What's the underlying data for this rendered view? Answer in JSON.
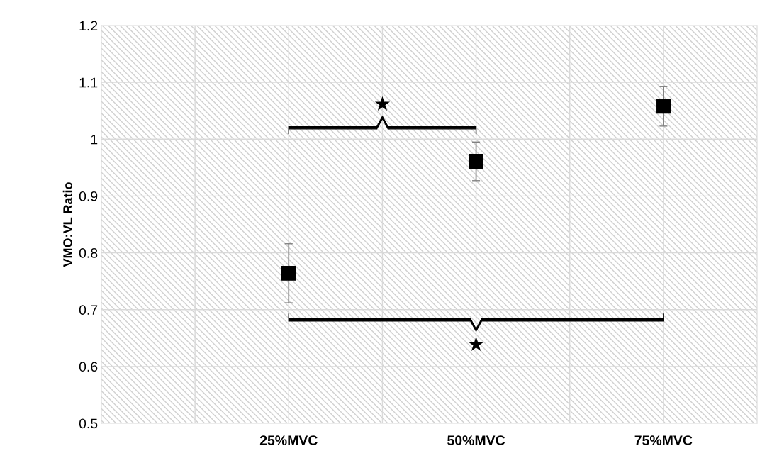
{
  "chart_data": {
    "type": "scatter",
    "ylabel": "VMO:VL Ratio",
    "categories": [
      null,
      "25%MVC",
      "50%MVC",
      "75%MVC"
    ],
    "series": [
      {
        "color": "#000000",
        "values": [
          null,
          0.764,
          0.961,
          1.058
        ],
        "errors": [
          null,
          0.052,
          0.034,
          0.035
        ]
      }
    ],
    "ylim": [
      0.5,
      1.2
    ],
    "yticks": [
      0.5,
      0.6,
      0.7,
      0.8,
      0.9,
      1,
      1.1,
      1.2
    ],
    "grid": true,
    "marker": "square",
    "annotations": [
      "★",
      "★"
    ]
  }
}
